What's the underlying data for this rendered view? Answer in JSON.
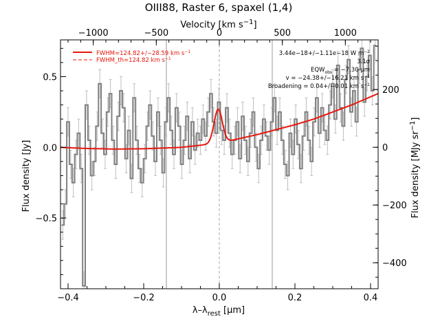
{
  "chart_data": {
    "type": "line",
    "title": "OIII88, Raster 6, spaxel (1,4)",
    "xlabel": "λ–λ",
    "xlabel_sub": "rest",
    "xlabel_unit": " [μm]",
    "ylabel": "Flux density [Jy]",
    "top_xlabel": "Velocity [km s",
    "top_xlabel_sup": "−1",
    "top_xlabel_end": "]",
    "right_ylabel": "Flux density [MJy sr",
    "right_ylabel_sup": "−1",
    "right_ylabel_end": "]",
    "xlim": [
      -0.42,
      0.42
    ],
    "ylim": [
      -1.0,
      0.76
    ],
    "velocity_lim": [
      -1260,
      1260
    ],
    "right_lim": [
      -490,
      372
    ],
    "x_ticks": [
      -0.4,
      -0.2,
      0.0,
      0.2,
      0.4
    ],
    "x_tick_labels": [
      "−0.4",
      "−0.2",
      "0.0",
      "0.2",
      "0.4"
    ],
    "y_ticks": [
      -0.5,
      0.0,
      0.5
    ],
    "y_tick_labels": [
      "−0.5",
      "0.0",
      "0.5"
    ],
    "velocity_ticks": [
      -1000,
      -500,
      0,
      500,
      1000
    ],
    "velocity_tick_labels": [
      "−1000",
      "−500",
      "0",
      "500",
      "1000"
    ],
    "right_ticks": [
      -400,
      -200,
      0,
      200
    ],
    "right_tick_labels": [
      "−400",
      "−200",
      "0",
      "200"
    ],
    "vlines_solid": [
      -0.14,
      0.14
    ],
    "vline_dashed": 0.0,
    "legend": [
      {
        "label": "FWHM=124.82+/−28.59 km s",
        "sup": "−1",
        "style": "solid",
        "color": "#e8160c"
      },
      {
        "label": "FWHM_th=124.82 km s",
        "sup": "−1",
        "style": "dashed",
        "color": "#e8160c"
      }
    ],
    "annotations": [
      {
        "text": "3.44e−18+/−1.11e−18 W m",
        "sup": "−2"
      },
      {
        "text": "3.1σ"
      },
      {
        "text": "EQW",
        "sub": "obs",
        "text2": " = −7.30 μm"
      },
      {
        "text": "v = −24.38+/−16.21 km s",
        "sup": "−1"
      },
      {
        "text": "Broadening = 0.04+/−0.01 km s",
        "sup": "−1"
      }
    ],
    "series": [
      {
        "kind": "spectrum",
        "color": "#808080",
        "x": [
          -0.414,
          -0.407,
          -0.4,
          -0.393,
          -0.386,
          -0.379,
          -0.372,
          -0.365,
          -0.358,
          -0.351,
          -0.344,
          -0.337,
          -0.33,
          -0.323,
          -0.316,
          -0.309,
          -0.302,
          -0.295,
          -0.288,
          -0.281,
          -0.274,
          -0.267,
          -0.26,
          -0.253,
          -0.246,
          -0.239,
          -0.232,
          -0.225,
          -0.218,
          -0.211,
          -0.204,
          -0.197,
          -0.19,
          -0.183,
          -0.176,
          -0.169,
          -0.162,
          -0.155,
          -0.148,
          -0.141,
          -0.134,
          -0.127,
          -0.12,
          -0.113,
          -0.106,
          -0.099,
          -0.092,
          -0.085,
          -0.078,
          -0.071,
          -0.064,
          -0.057,
          -0.05,
          -0.043,
          -0.036,
          -0.029,
          -0.022,
          -0.015,
          -0.008,
          -0.001,
          0.006,
          0.013,
          0.02,
          0.027,
          0.034,
          0.041,
          0.048,
          0.055,
          0.062,
          0.069,
          0.076,
          0.083,
          0.09,
          0.097,
          0.104,
          0.111,
          0.118,
          0.125,
          0.132,
          0.139,
          0.146,
          0.153,
          0.16,
          0.167,
          0.174,
          0.181,
          0.188,
          0.195,
          0.202,
          0.209,
          0.216,
          0.223,
          0.23,
          0.237,
          0.244,
          0.251,
          0.258,
          0.265,
          0.272,
          0.279,
          0.286,
          0.293,
          0.3,
          0.307,
          0.314,
          0.321,
          0.328,
          0.335,
          0.342,
          0.349,
          0.356,
          0.363,
          0.37,
          0.377,
          0.384,
          0.391,
          0.398,
          0.405,
          0.412
        ],
        "y": [
          -0.55,
          -0.4,
          0.18,
          -0.12,
          -0.25,
          -0.05,
          0.1,
          -0.15,
          -0.98,
          0.3,
          0.05,
          -0.2,
          -0.1,
          0.15,
          0.45,
          0.1,
          -0.05,
          0.25,
          0.38,
          0.05,
          -0.12,
          0.22,
          0.4,
          0.28,
          -0.08,
          0.12,
          -0.22,
          0.35,
          0.05,
          -0.15,
          -0.25,
          -0.08,
          0.15,
          0.3,
          0.08,
          -0.1,
          0.25,
          0.05,
          -0.18,
          0.18,
          0.35,
          0.12,
          -0.05,
          0.28,
          0.15,
          -0.12,
          0.05,
          0.22,
          -0.08,
          0.18,
          -0.02,
          0.1,
          0.05,
          0.2,
          0.08,
          0.25,
          0.38,
          0.18,
          0.1,
          0.32,
          0.12,
          0.05,
          0.28,
          0.1,
          -0.05,
          0.05,
          0.18,
          -0.08,
          0.22,
          0.05,
          -0.1,
          0.1,
          0.25,
          0.0,
          -0.15,
          0.05,
          0.2,
          0.08,
          -0.02,
          0.18,
          0.35,
          0.12,
          0.25,
          0.05,
          -0.12,
          -0.2,
          0.1,
          -0.05,
          0.2,
          0.02,
          -0.15,
          0.08,
          0.25,
          0.05,
          -0.1,
          0.18,
          0.35,
          0.1,
          0.28,
          0.12,
          0.05,
          0.3,
          0.45,
          0.2,
          0.58,
          0.28,
          0.15,
          0.48,
          0.62,
          0.25,
          0.4,
          0.18,
          0.55,
          0.7,
          0.32,
          0.5,
          0.65,
          0.4,
          0.72
        ],
        "err": [
          0.1,
          0.1,
          0.1,
          0.1,
          0.1,
          0.1,
          0.1,
          0.1,
          0.1,
          0.1,
          0.1,
          0.1,
          0.1,
          0.1,
          0.1,
          0.1,
          0.1,
          0.1,
          0.1,
          0.1,
          0.1,
          0.1,
          0.1,
          0.1,
          0.1,
          0.1,
          0.1,
          0.1,
          0.1,
          0.1,
          0.1,
          0.1,
          0.1,
          0.1,
          0.1,
          0.1,
          0.1,
          0.1,
          0.1,
          0.1,
          0.1,
          0.1,
          0.1,
          0.1,
          0.1,
          0.1,
          0.1,
          0.1,
          0.1,
          0.1,
          0.1,
          0.1,
          0.1,
          0.1,
          0.1,
          0.1,
          0.1,
          0.1,
          0.1,
          0.1,
          0.1,
          0.1,
          0.1,
          0.1,
          0.1,
          0.1,
          0.1,
          0.1,
          0.1,
          0.1,
          0.1,
          0.1,
          0.1,
          0.1,
          0.1,
          0.1,
          0.1,
          0.1,
          0.1,
          0.1,
          0.1,
          0.1,
          0.1,
          0.1,
          0.1,
          0.1,
          0.1,
          0.1,
          0.1,
          0.1,
          0.1,
          0.1,
          0.1,
          0.1,
          0.1,
          0.1,
          0.1,
          0.1,
          0.1,
          0.1,
          0.1,
          0.1,
          0.1,
          0.1,
          0.1,
          0.1,
          0.1,
          0.1,
          0.1,
          0.1,
          0.1,
          0.1,
          0.1,
          0.1,
          0.1,
          0.1,
          0.1,
          0.1,
          0.1
        ]
      },
      {
        "kind": "model",
        "color": "#e8160c",
        "baseline_points": [
          [
            -0.42,
            0.0
          ],
          [
            -0.35,
            -0.008
          ],
          [
            -0.28,
            -0.012
          ],
          [
            -0.2,
            -0.01
          ],
          [
            -0.1,
            0.0
          ],
          [
            -0.05,
            0.015
          ],
          [
            0.0,
            0.03
          ],
          [
            0.05,
            0.06
          ],
          [
            0.1,
            0.09
          ],
          [
            0.15,
            0.125
          ],
          [
            0.2,
            0.16
          ],
          [
            0.25,
            0.2
          ],
          [
            0.3,
            0.25
          ],
          [
            0.35,
            0.3
          ],
          [
            0.42,
            0.38
          ]
        ],
        "peak_center": -0.003,
        "peak_amplitude": 0.24,
        "peak_sigma": 0.011
      }
    ]
  }
}
